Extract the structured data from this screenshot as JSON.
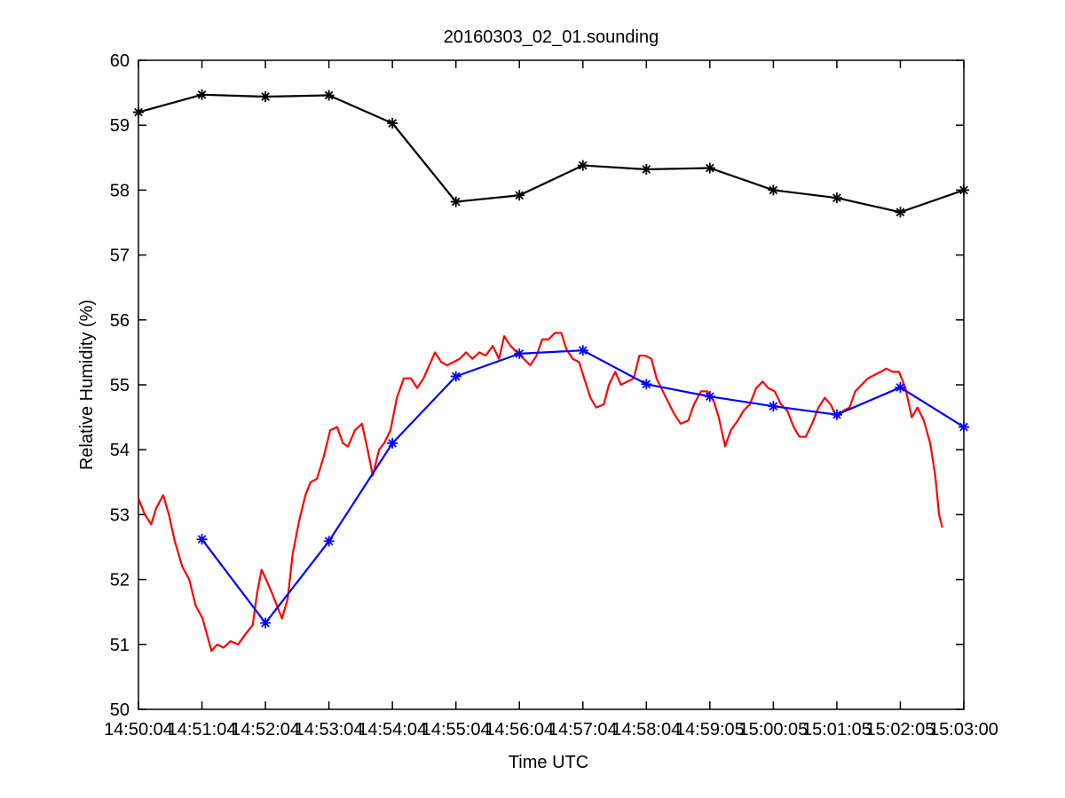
{
  "chart_data": {
    "type": "line",
    "title": "20160303_02_01.sounding",
    "xlabel": "Time UTC",
    "ylabel": "Relative Humidity (%)",
    "xlim": [
      0,
      13
    ],
    "xticks": [
      {
        "value": 0,
        "label": "14:50:04"
      },
      {
        "value": 1,
        "label": "14:51:04"
      },
      {
        "value": 2,
        "label": "14:52:04"
      },
      {
        "value": 3,
        "label": "14:53:04"
      },
      {
        "value": 4,
        "label": "14:54:04"
      },
      {
        "value": 5,
        "label": "14:55:04"
      },
      {
        "value": 6,
        "label": "14:56:04"
      },
      {
        "value": 7,
        "label": "14:57:04"
      },
      {
        "value": 8,
        "label": "14:58:04"
      },
      {
        "value": 9,
        "label": "14:59:05"
      },
      {
        "value": 10,
        "label": "15:00:05"
      },
      {
        "value": 11,
        "label": "15:01:05"
      },
      {
        "value": 12,
        "label": "15:02:05"
      },
      {
        "value": 13,
        "label": "15:03:00"
      }
    ],
    "ylim": [
      50,
      60
    ],
    "yticks": [
      50,
      51,
      52,
      53,
      54,
      55,
      56,
      57,
      58,
      59,
      60
    ],
    "series": [
      {
        "color": "#000000",
        "marker": "asterisk",
        "x": [
          0,
          1,
          2,
          3,
          4,
          5,
          6,
          7,
          8,
          9,
          10,
          11,
          12,
          13
        ],
        "values": [
          59.2,
          59.47,
          59.44,
          59.46,
          59.03,
          57.82,
          57.92,
          58.38,
          58.32,
          58.34,
          58.0,
          57.88,
          57.66,
          58.0
        ]
      },
      {
        "color": "#ff0000",
        "x": [
          0,
          0.1,
          0.2,
          0.28,
          0.39,
          0.48,
          0.57,
          0.69,
          0.8,
          0.9,
          1.01,
          1.15,
          1.24,
          1.34,
          1.45,
          1.57,
          1.68,
          1.8,
          1.87,
          1.94,
          2.01,
          2.1,
          2.18,
          2.26,
          2.35,
          2.43,
          2.53,
          2.63,
          2.71,
          2.81,
          2.92,
          3.02,
          3.13,
          3.22,
          3.3,
          3.41,
          3.52,
          3.61,
          3.69,
          3.79,
          3.87,
          3.97,
          4.07,
          4.18,
          4.29,
          4.39,
          4.49,
          4.58,
          4.67,
          4.77,
          4.86,
          4.96,
          5.06,
          5.16,
          5.26,
          5.37,
          5.47,
          5.58,
          5.68,
          5.76,
          5.86,
          5.96,
          6.07,
          6.17,
          6.27,
          6.36,
          6.46,
          6.56,
          6.66,
          6.74,
          6.84,
          6.94,
          7.02,
          7.12,
          7.21,
          7.33,
          7.41,
          7.51,
          7.6,
          7.7,
          7.8,
          7.89,
          7.98,
          8.08,
          8.16,
          8.26,
          8.36,
          8.44,
          8.54,
          8.66,
          8.75,
          8.86,
          8.96,
          9.06,
          9.14,
          9.24,
          9.33,
          9.44,
          9.53,
          9.63,
          9.73,
          9.83,
          9.92,
          10.02,
          10.12,
          10.22,
          10.32,
          10.41,
          10.51,
          10.61,
          10.71,
          10.81,
          10.9,
          11.0,
          11.1,
          11.2,
          11.29,
          11.39,
          11.49,
          11.59,
          11.69,
          11.78,
          11.88,
          11.98,
          12.08,
          12.18,
          12.27,
          12.37,
          12.47,
          12.55,
          12.61,
          12.66
        ],
        "values": [
          53.25,
          53.0,
          52.85,
          53.1,
          53.3,
          53.0,
          52.6,
          52.2,
          52.0,
          51.6,
          51.4,
          50.9,
          51.0,
          50.95,
          51.05,
          51.0,
          51.15,
          51.3,
          51.8,
          52.15,
          52.0,
          51.8,
          51.6,
          51.4,
          51.7,
          52.4,
          52.9,
          53.3,
          53.5,
          53.55,
          53.9,
          54.3,
          54.35,
          54.1,
          54.05,
          54.3,
          54.4,
          54.0,
          53.6,
          54.0,
          54.1,
          54.3,
          54.8,
          55.1,
          55.1,
          54.95,
          55.1,
          55.3,
          55.5,
          55.35,
          55.3,
          55.35,
          55.4,
          55.5,
          55.4,
          55.5,
          55.45,
          55.6,
          55.4,
          55.75,
          55.6,
          55.5,
          55.4,
          55.3,
          55.45,
          55.7,
          55.7,
          55.8,
          55.8,
          55.55,
          55.4,
          55.35,
          55.1,
          54.8,
          54.65,
          54.7,
          55.0,
          55.2,
          55.0,
          55.05,
          55.1,
          55.45,
          55.45,
          55.4,
          55.1,
          54.9,
          54.7,
          54.55,
          54.4,
          54.45,
          54.7,
          54.9,
          54.9,
          54.75,
          54.5,
          54.05,
          54.3,
          54.45,
          54.6,
          54.7,
          54.95,
          55.05,
          54.95,
          54.9,
          54.7,
          54.6,
          54.35,
          54.2,
          54.2,
          54.4,
          54.65,
          54.8,
          54.7,
          54.5,
          54.6,
          54.65,
          54.9,
          55.0,
          55.1,
          55.15,
          55.2,
          55.25,
          55.2,
          55.2,
          54.95,
          54.5,
          54.65,
          54.45,
          54.1,
          53.6,
          53.0,
          52.8
        ]
      },
      {
        "color": "#0000ff",
        "marker": "asterisk",
        "x": [
          1,
          2,
          3,
          4,
          5,
          6,
          7,
          8,
          9,
          10,
          11,
          12,
          13
        ],
        "values": [
          52.62,
          51.33,
          52.59,
          54.1,
          55.13,
          55.48,
          55.53,
          55.01,
          54.82,
          54.67,
          54.54,
          54.96,
          54.35
        ]
      }
    ]
  }
}
